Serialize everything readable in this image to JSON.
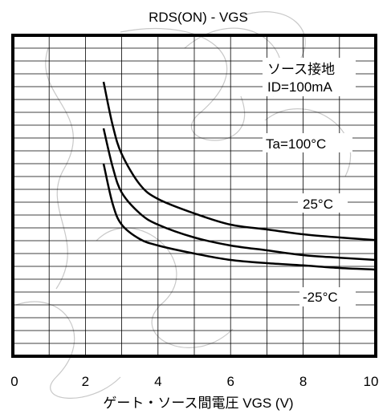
{
  "chart_data": {
    "type": "line",
    "title": "RDS(ON) - VGS",
    "xlabel": "ゲート・ソース間電圧 VGS (V)",
    "ylabel": "",
    "xlim": [
      0,
      10
    ],
    "x_ticks": [
      "0",
      "2",
      "4",
      "6",
      "8",
      "10"
    ],
    "grid": true,
    "annotations": {
      "condition_line1": "ソース接地",
      "condition_line2": "ID=100mA",
      "series_label_1": "Ta=100°C",
      "series_label_2": "25°C",
      "series_label_3": "-25°C"
    },
    "series": [
      {
        "name": "Ta=100°C",
        "x": [
          2.5,
          2.75,
          3.0,
          3.5,
          4.0,
          5.0,
          6.0,
          7.0,
          8.0,
          9.0,
          10.0
        ],
        "y": [
          0.855,
          0.72,
          0.63,
          0.535,
          0.49,
          0.445,
          0.41,
          0.395,
          0.38,
          0.37,
          0.362
        ]
      },
      {
        "name": "25°C",
        "x": [
          2.5,
          2.75,
          3.0,
          3.5,
          4.0,
          5.0,
          6.0,
          7.0,
          8.0,
          9.0,
          10.0
        ],
        "y": [
          0.71,
          0.59,
          0.51,
          0.445,
          0.41,
          0.37,
          0.345,
          0.33,
          0.315,
          0.307,
          0.3
        ]
      },
      {
        "name": "-25°C",
        "x": [
          2.5,
          2.75,
          3.0,
          3.5,
          4.0,
          5.0,
          6.0,
          7.0,
          8.0,
          9.0,
          10.0
        ],
        "y": [
          0.6,
          0.475,
          0.41,
          0.365,
          0.345,
          0.32,
          0.3,
          0.29,
          0.283,
          0.275,
          0.27
        ]
      }
    ]
  }
}
